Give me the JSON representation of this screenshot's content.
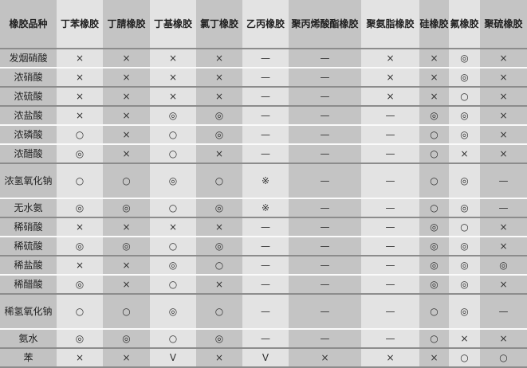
{
  "table": {
    "headers": [
      "橡胶品种",
      "丁苯橡胶",
      "丁腈橡胶",
      "丁基橡胶",
      "氯丁橡胶",
      "乙丙橡胶",
      "聚丙烯酸酯橡胶",
      "聚氨脂橡胶",
      "硅橡胶",
      "氟橡胶",
      "聚硫橡胶"
    ],
    "rows": [
      {
        "name": "发烟硝酸",
        "values": [
          "×",
          "×",
          "×",
          "×",
          "—",
          "—",
          "×",
          "×",
          "◎",
          "×"
        ]
      },
      {
        "name": "浓硝酸",
        "values": [
          "×",
          "×",
          "×",
          "×",
          "—",
          "—",
          "×",
          "×",
          "◎",
          "×"
        ]
      },
      {
        "name": "浓硫酸",
        "values": [
          "×",
          "×",
          "×",
          "×",
          "—",
          "—",
          "×",
          "×",
          "○",
          "×"
        ]
      },
      {
        "name": "浓盐酸",
        "values": [
          "×",
          "×",
          "◎",
          "◎",
          "—",
          "—",
          "—",
          "◎",
          "◎",
          "×"
        ]
      },
      {
        "name": "浓磷酸",
        "values": [
          "○",
          "×",
          "○",
          "◎",
          "—",
          "—",
          "—",
          "○",
          "◎",
          "×"
        ]
      },
      {
        "name": "浓醋酸",
        "values": [
          "◎",
          "×",
          "○",
          "×",
          "—",
          "—",
          "—",
          "○",
          "×",
          "×"
        ]
      },
      {
        "name": "浓氢氧化钠",
        "values": [
          "○",
          "○",
          "◎",
          "○",
          "※",
          "—",
          "—",
          "○",
          "◎",
          "—"
        ]
      },
      {
        "name": "无水氨",
        "values": [
          "◎",
          "◎",
          "○",
          "◎",
          "※",
          "—",
          "—",
          "○",
          "◎",
          "—"
        ]
      },
      {
        "name": "稀硝酸",
        "values": [
          "×",
          "×",
          "×",
          "×",
          "—",
          "—",
          "—",
          "◎",
          "○",
          "×"
        ]
      },
      {
        "name": "稀硫酸",
        "values": [
          "◎",
          "◎",
          "○",
          "◎",
          "—",
          "—",
          "—",
          "◎",
          "◎",
          "×"
        ]
      },
      {
        "name": "稀盐酸",
        "values": [
          "×",
          "×",
          "◎",
          "○",
          "—",
          "—",
          "—",
          "◎",
          "◎",
          "◎"
        ]
      },
      {
        "name": "稀醋酸",
        "values": [
          "◎",
          "×",
          "○",
          "×",
          "—",
          "—",
          "—",
          "◎",
          "◎",
          "×"
        ]
      },
      {
        "name": "稀氢氧化钠",
        "values": [
          "○",
          "○",
          "◎",
          "○",
          "—",
          "—",
          "—",
          "○",
          "◎",
          "—"
        ]
      },
      {
        "name": "氨水",
        "values": [
          "◎",
          "◎",
          "○",
          "◎",
          "—",
          "—",
          "—",
          "○",
          "×",
          "×"
        ]
      },
      {
        "name": "苯",
        "values": [
          "×",
          "×",
          "V",
          "×",
          "V",
          "×",
          "×",
          "×",
          "○",
          "○"
        ]
      }
    ]
  }
}
